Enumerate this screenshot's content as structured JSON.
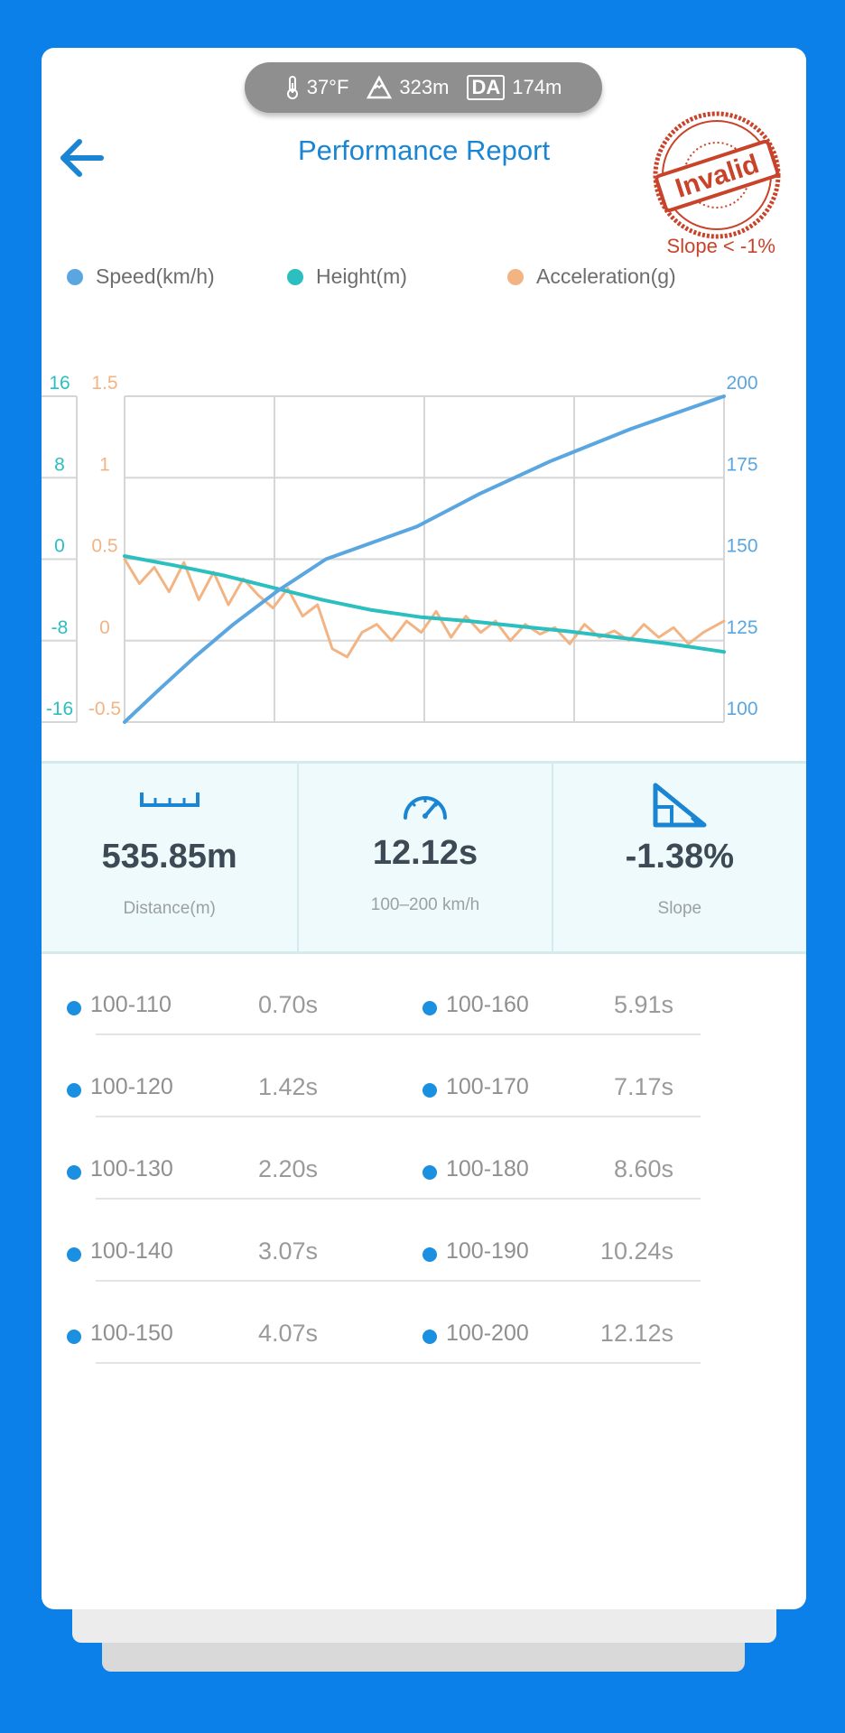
{
  "header": {
    "temperature": "37°F",
    "altitude": "323m",
    "density_altitude_badge": "DA",
    "density_altitude": "174m",
    "title": "Performance Report",
    "stamp_text": "Invalid",
    "stamp_note": "Slope < -1%"
  },
  "colors": {
    "accent": "#1a86d3",
    "speed": "#5aa6e0",
    "height": "#2bbfbf",
    "acceleration": "#f3b484",
    "stamp": "#c8432a",
    "background": "#0a80e8"
  },
  "chart_data": {
    "type": "line",
    "title": "",
    "grid": true,
    "legend": "top",
    "x_range": [
      0,
      12.12
    ],
    "axes": {
      "left_outer": {
        "series": "Height(m)",
        "ticks": [
          "16",
          "8",
          "0",
          "-8",
          "-16"
        ],
        "range": [
          -16,
          16
        ]
      },
      "left_inner": {
        "series": "Acceleration(g)",
        "ticks": [
          "1.5",
          "1",
          "0.5",
          "0",
          "-0.5"
        ],
        "range": [
          -0.5,
          1.5
        ]
      },
      "right": {
        "series": "Speed(km/h)",
        "ticks": [
          "200",
          "175",
          "150",
          "125",
          "100"
        ],
        "range": [
          100,
          200
        ]
      }
    },
    "series": [
      {
        "name": "Speed(km/h)",
        "axis": "right",
        "x": [
          0,
          0.7,
          1.42,
          2.2,
          3.07,
          4.07,
          5.91,
          7.17,
          8.6,
          10.24,
          12.12
        ],
        "y": [
          100,
          110,
          120,
          130,
          140,
          150,
          160,
          170,
          180,
          190,
          200
        ]
      },
      {
        "name": "Height(m)",
        "axis": "left_outer",
        "x": [
          0,
          1,
          2,
          3,
          4,
          5,
          6,
          7,
          8,
          9,
          10,
          11,
          12.12
        ],
        "y": [
          0.3,
          -0.6,
          -1.6,
          -2.8,
          -4.0,
          -5.0,
          -5.7,
          -6.1,
          -6.6,
          -7.1,
          -7.7,
          -8.3,
          -9.1
        ]
      },
      {
        "name": "Acceleration(g)",
        "axis": "left_inner",
        "x": [
          0,
          0.3,
          0.6,
          0.9,
          1.2,
          1.5,
          1.8,
          2.1,
          2.4,
          2.7,
          3.0,
          3.3,
          3.6,
          3.9,
          4.2,
          4.5,
          4.8,
          5.1,
          5.4,
          5.7,
          6.0,
          6.3,
          6.6,
          6.9,
          7.2,
          7.5,
          7.8,
          8.1,
          8.4,
          8.7,
          9.0,
          9.3,
          9.6,
          9.9,
          10.2,
          10.5,
          10.8,
          11.1,
          11.4,
          11.7,
          12.0,
          12.12
        ],
        "y": [
          0.5,
          0.35,
          0.45,
          0.3,
          0.48,
          0.25,
          0.42,
          0.22,
          0.38,
          0.28,
          0.2,
          0.32,
          0.15,
          0.22,
          -0.05,
          -0.1,
          0.05,
          0.1,
          0.0,
          0.12,
          0.05,
          0.18,
          0.02,
          0.15,
          0.05,
          0.12,
          0.0,
          0.1,
          0.04,
          0.08,
          -0.02,
          0.1,
          0.02,
          0.06,
          0.0,
          0.1,
          0.02,
          0.08,
          -0.02,
          0.05,
          0.1,
          0.12
        ]
      }
    ]
  },
  "stats": {
    "distance_value": "535.85m",
    "distance_label": "Distance(m)",
    "time_value": "12.12s",
    "time_label": "100–200 km/h",
    "slope_value": "-1.38%",
    "slope_label": "Slope"
  },
  "splits": [
    {
      "label": "100-110",
      "time": "0.70s"
    },
    {
      "label": "100-120",
      "time": "1.42s"
    },
    {
      "label": "100-130",
      "time": "2.20s"
    },
    {
      "label": "100-140",
      "time": "3.07s"
    },
    {
      "label": "100-150",
      "time": "4.07s"
    },
    {
      "label": "100-160",
      "time": "5.91s"
    },
    {
      "label": "100-170",
      "time": "7.17s"
    },
    {
      "label": "100-180",
      "time": "8.60s"
    },
    {
      "label": "100-190",
      "time": "10.24s"
    },
    {
      "label": "100-200",
      "time": "12.12s"
    }
  ]
}
